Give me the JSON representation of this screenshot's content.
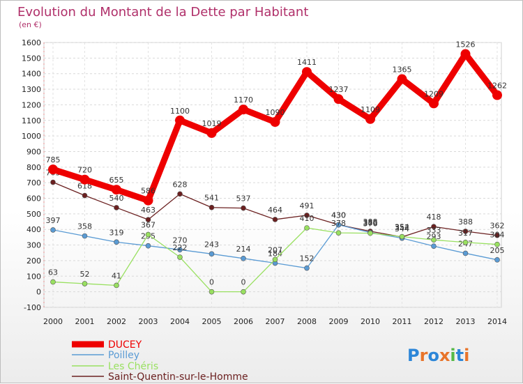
{
  "chart_data": {
    "type": "line",
    "title": "Evolution du Montant de la Dette par Habitant",
    "subtitle": "(en €)",
    "x": [
      "2000",
      "2001",
      "2002",
      "2003",
      "2004",
      "2005",
      "2006",
      "2007",
      "2008",
      "2009",
      "2010",
      "2011",
      "2012",
      "2013",
      "2014"
    ],
    "ylim": [
      -100,
      1600
    ],
    "yticks": [
      -100,
      0,
      100,
      200,
      300,
      400,
      500,
      600,
      700,
      800,
      900,
      1000,
      1100,
      1200,
      1300,
      1400,
      1500,
      1600
    ],
    "grid": true,
    "legend_position": "bottom-left",
    "series": [
      {
        "name": "DUCEY",
        "color": "#ee0000",
        "values": [
          785,
          720,
          655,
          586,
          1100,
          1019,
          1170,
          1090,
          1411,
          1237,
          1109,
          1365,
          1209,
          1526,
          1262
        ],
        "labels": [
          "785",
          "720",
          "655",
          "586",
          "1100",
          "1019",
          "1170",
          "1090",
          "1411",
          "1237",
          "1109",
          "1365",
          "1209",
          "1526",
          "1262"
        ]
      },
      {
        "name": "Poilley",
        "color": "#5a9bd4",
        "values": [
          397,
          358,
          319,
          295,
          270,
          243,
          214,
          184,
          152,
          430,
          380,
          344,
          293,
          247,
          205
        ],
        "labels": [
          "397",
          "358",
          "319",
          "295",
          "270",
          "243",
          "214",
          "184",
          "152",
          "430",
          "380",
          "344",
          "293",
          "247",
          "205"
        ]
      },
      {
        "name": "Les Chéris",
        "color": "#99e060",
        "values": [
          63,
          52,
          41,
          367,
          222,
          0,
          0,
          207,
          410,
          378,
          376,
          354,
          333,
          317,
          304
        ],
        "labels": [
          "63",
          "52",
          "41",
          "367",
          "222",
          "0",
          "0",
          "207",
          "410",
          "378",
          "376",
          "354",
          "333",
          "317",
          "304"
        ]
      },
      {
        "name": "Saint-Quentin-sur-le-Homme",
        "color": "#6b2020",
        "values": [
          703,
          618,
          540,
          463,
          628,
          541,
          537,
          464,
          491,
          430,
          388,
          352,
          418,
          388,
          362
        ],
        "labels": [
          "703",
          "618",
          "540",
          "463",
          "628",
          "541",
          "537",
          "464",
          "491",
          "430",
          "388",
          "352",
          "418",
          "388",
          "362"
        ]
      }
    ]
  },
  "brand": {
    "text": "Proxiti"
  }
}
